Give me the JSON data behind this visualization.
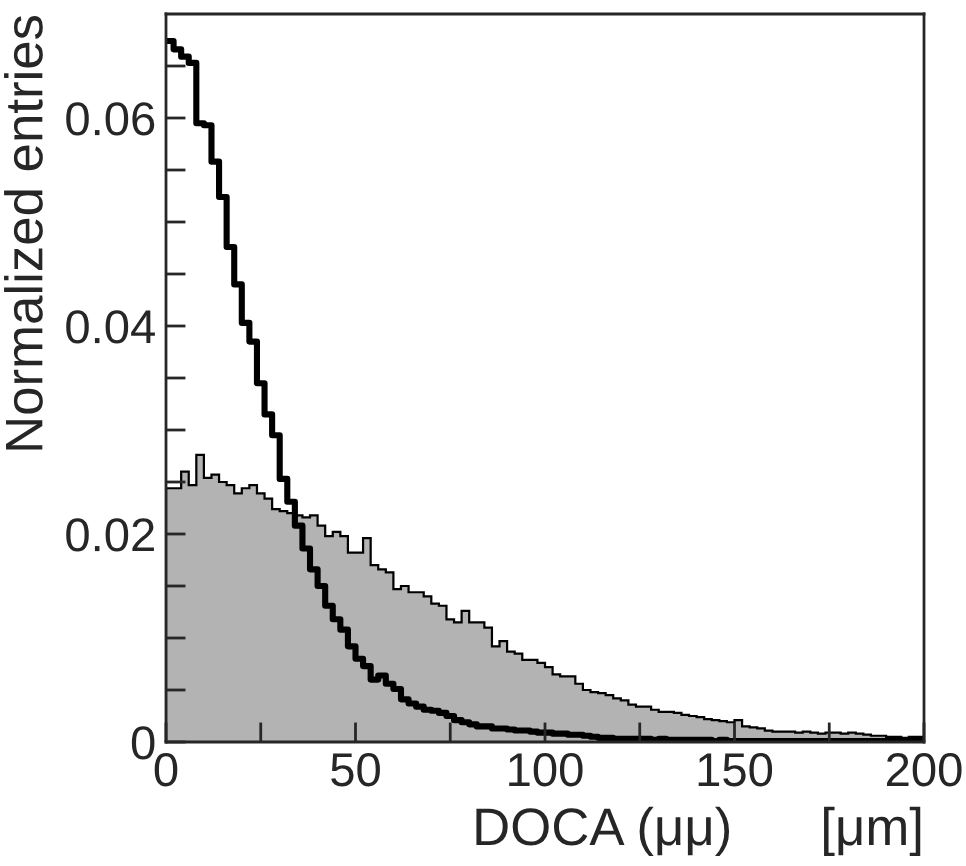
{
  "chart_data": {
    "type": "histogram",
    "xlabel": "DOCA (μμ)      [μm]",
    "ylabel": "Normalized entries",
    "bins": [
      0,
      2,
      4,
      6,
      8,
      10,
      12,
      14,
      16,
      18,
      20,
      22,
      24,
      26,
      28,
      30,
      32,
      34,
      36,
      38,
      40,
      42,
      44,
      46,
      48,
      50,
      52,
      54,
      56,
      58,
      60,
      62,
      64,
      66,
      68,
      70,
      72,
      74,
      76,
      78,
      80,
      82,
      84,
      86,
      88,
      90,
      92,
      94,
      96,
      98,
      100,
      102,
      104,
      106,
      108,
      110,
      112,
      114,
      116,
      118,
      120,
      122,
      124,
      126,
      128,
      130,
      132,
      134,
      136,
      138,
      140,
      142,
      144,
      146,
      148,
      150,
      152,
      154,
      156,
      158,
      160,
      162,
      164,
      166,
      168,
      170,
      172,
      174,
      176,
      178,
      180,
      182,
      184,
      186,
      188,
      190,
      192,
      194,
      196,
      198,
      200
    ],
    "series": [
      {
        "type": "histogram",
        "color": "#b3b3b3",
        "values": [
          0.0244,
          0.0244,
          0.026,
          0.0247,
          0.0276,
          0.0254,
          0.0257,
          0.025,
          0.0247,
          0.0239,
          0.0244,
          0.0247,
          0.0239,
          0.0234,
          0.0224,
          0.0222,
          0.022,
          0.0218,
          0.0216,
          0.0218,
          0.0208,
          0.0198,
          0.0202,
          0.0198,
          0.0182,
          0.0182,
          0.0196,
          0.017,
          0.0166,
          0.0163,
          0.0147,
          0.015,
          0.0144,
          0.0144,
          0.014,
          0.0133,
          0.0131,
          0.0118,
          0.0115,
          0.0126,
          0.0115,
          0.0115,
          0.011,
          0.0092,
          0.0097,
          0.0087,
          0.0085,
          0.0079,
          0.0079,
          0.0076,
          0.0072,
          0.0065,
          0.0063,
          0.0063,
          0.0056,
          0.005,
          0.0048,
          0.0047,
          0.0045,
          0.0042,
          0.004,
          0.0036,
          0.0034,
          0.0034,
          0.0031,
          0.0029,
          0.0029,
          0.0028,
          0.0026,
          0.0025,
          0.0024,
          0.0022,
          0.0021,
          0.002,
          0.0019,
          0.0021,
          0.0015,
          0.0014,
          0.0013,
          0.0011,
          0.001,
          0.001,
          0.001,
          0.0009,
          0.001,
          0.0009,
          0.0008,
          0.0009,
          0.0009,
          0.0008,
          0.0009,
          0.0008,
          0.0007,
          0.0006,
          0.0006,
          0.0005,
          0.0005,
          0.0004,
          0.0005,
          0.0005
        ]
      },
      {
        "type": "step",
        "color": "#000000",
        "x": [
          0,
          2,
          4,
          6,
          8,
          10,
          12,
          14,
          16,
          18,
          20,
          22,
          24,
          26,
          28,
          30,
          32,
          34,
          36,
          38,
          40,
          42,
          44,
          46,
          48,
          50,
          52,
          54,
          56,
          58,
          60,
          62,
          64,
          66,
          68,
          70,
          72,
          74,
          76,
          78,
          80,
          82,
          84,
          86,
          88,
          90,
          92,
          94,
          96,
          98,
          100,
          102,
          104,
          106,
          108,
          110,
          112,
          114,
          116,
          118,
          120,
          122,
          124,
          126,
          128,
          130,
          132,
          134,
          136,
          138,
          140,
          142,
          144,
          146,
          148,
          150,
          152,
          154,
          156,
          158,
          160,
          162,
          164,
          166,
          168,
          170,
          172,
          174,
          176,
          178,
          180,
          182,
          184,
          186,
          188,
          190,
          192,
          194,
          196,
          198,
          200
        ],
        "values": [
          0.0674,
          0.0666,
          0.0659,
          0.0653,
          0.0595,
          0.0593,
          0.0558,
          0.0524,
          0.0476,
          0.044,
          0.0403,
          0.0385,
          0.0345,
          0.0315,
          0.0295,
          0.0253,
          0.0231,
          0.0208,
          0.0186,
          0.0166,
          0.015,
          0.0131,
          0.0118,
          0.0108,
          0.0092,
          0.008,
          0.0073,
          0.006,
          0.0064,
          0.0056,
          0.0051,
          0.0041,
          0.0037,
          0.0034,
          0.0031,
          0.003,
          0.0028,
          0.0025,
          0.0021,
          0.0019,
          0.0017,
          0.0015,
          0.0015,
          0.0013,
          0.0013,
          0.0012,
          0.0011,
          0.0011,
          0.001,
          0.0009,
          0.0009,
          0.0008,
          0.0008,
          0.0007,
          0.0007,
          0.0006,
          0.0005,
          0.0004,
          0.0004,
          0.0003,
          0.0003,
          0.0003,
          0.0003,
          0.0003,
          0.0002,
          0.0003,
          0.0002,
          0.0002,
          0.0002,
          0.0002,
          0.0002,
          0.0002,
          0.0001,
          0.0002,
          0.0001,
          0.0001,
          0.0001,
          0.0001,
          0.0001,
          0.0001,
          0.0001,
          0.0001,
          0.0001,
          0.0001,
          0.0001,
          0.0001,
          0.0001,
          0.0001,
          0.0001,
          0.0001,
          0.0001,
          0.0001,
          0.0001,
          0.0001,
          0.0001,
          0.0001,
          0.0001,
          0.0001,
          0.0001,
          0.0001,
          0.0001
        ]
      }
    ],
    "xlim": [
      0,
      200
    ],
    "ylim": [
      0,
      0.07
    ],
    "xticks": [
      0,
      {
        "value": 25,
        "label": null
      },
      50,
      {
        "value": 75,
        "label": null
      },
      100,
      {
        "value": 125,
        "label": null
      },
      150,
      {
        "value": 175,
        "label": null
      },
      200
    ],
    "yticks": [
      0,
      {
        "value": 0.005,
        "label": null
      },
      {
        "value": 0.01,
        "label": null
      },
      {
        "value": 0.015,
        "label": null
      },
      0.02,
      {
        "value": 0.025,
        "label": null
      },
      {
        "value": 0.03,
        "label": null
      },
      {
        "value": 0.035,
        "label": null
      },
      0.04,
      {
        "value": 0.045,
        "label": null
      },
      {
        "value": 0.05,
        "label": null
      },
      {
        "value": 0.055,
        "label": null
      },
      0.06,
      {
        "value": 0.065,
        "label": null
      }
    ],
    "grid": false,
    "legend": false
  }
}
